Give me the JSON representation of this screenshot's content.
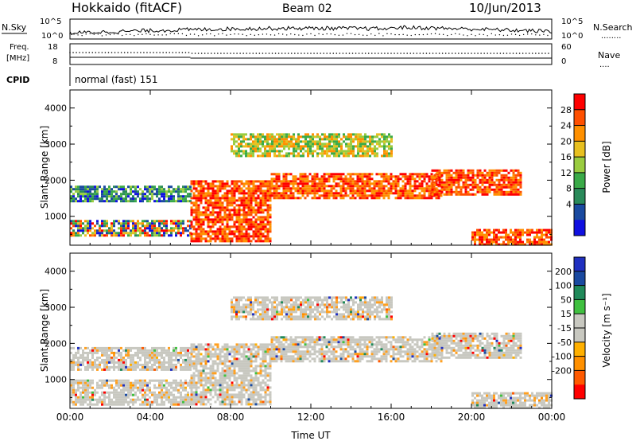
{
  "header": {
    "station": "Hokkaido (fitACF)",
    "beam": "Beam 02",
    "date": "10/Jun/2013"
  },
  "noise_panel": {
    "left_label": "N.Sky",
    "right_label": "N.Search",
    "right_label_line": "........",
    "ticks": [
      "10^5",
      "10^0"
    ]
  },
  "freq_panel": {
    "left_label_1": "Freq.",
    "left_label_2": "[MHz]",
    "left_ticks": [
      "18",
      "8"
    ],
    "right_label": "Nave",
    "right_label_line": "....",
    "right_ticks": [
      "60",
      "0"
    ]
  },
  "cpid": {
    "label": "CPID",
    "text": "normal (fast) 151"
  },
  "colors": {
    "power": [
      "#1010e0",
      "#1a4aa0",
      "#2a8a5a",
      "#3aaa48",
      "#9acc40",
      "#e8c020",
      "#ff9000",
      "#ff5000",
      "#ff0000"
    ],
    "velocity": [
      "#ff0000",
      "#ff5a00",
      "#ff9000",
      "#ffb000",
      "#c8c8c0",
      "#c8c8c0",
      "#40c040",
      "#208a5a",
      "#1a4aa0",
      "#2030c0"
    ]
  },
  "chart_data": [
    {
      "type": "heatmap",
      "panel": "power",
      "xlabel": "",
      "ylabel": "Slant Range [km]",
      "x_ticks": [
        "00:00",
        "04:00",
        "08:00",
        "12:00",
        "16:00",
        "20:00",
        "00:00"
      ],
      "y_ticks": [
        1000,
        2000,
        3000,
        4000
      ],
      "ylim": [
        200,
        4500
      ],
      "colorbar_label": "Power [dB]",
      "colorbar_ticks": [
        4,
        8,
        12,
        16,
        20,
        24,
        28
      ],
      "regions": [
        {
          "t0": 0.0,
          "t1": 6.0,
          "r0": 1400,
          "r1": 1850,
          "level": "low"
        },
        {
          "t0": 0.0,
          "t1": 6.0,
          "r0": 500,
          "r1": 900,
          "level": "mixed"
        },
        {
          "t0": 6.0,
          "t1": 10.0,
          "r0": 300,
          "r1": 2000,
          "level": "high"
        },
        {
          "t0": 10.0,
          "t1": 18.5,
          "r0": 1500,
          "r1": 2200,
          "level": "high"
        },
        {
          "t0": 18.0,
          "t1": 22.5,
          "r0": 1600,
          "r1": 2300,
          "level": "high"
        },
        {
          "t0": 20.0,
          "t1": 24.0,
          "r0": 250,
          "r1": 650,
          "level": "high"
        },
        {
          "t0": 8.0,
          "t1": 16.0,
          "r0": 2700,
          "r1": 3300,
          "level": "mid"
        }
      ]
    },
    {
      "type": "heatmap",
      "panel": "velocity",
      "xlabel": "Time UT",
      "ylabel": "Slant Range [km]",
      "x_ticks": [
        "00:00",
        "04:00",
        "08:00",
        "12:00",
        "16:00",
        "20:00",
        "00:00"
      ],
      "y_ticks": [
        1000,
        2000,
        3000,
        4000
      ],
      "ylim": [
        200,
        4500
      ],
      "colorbar_label": "Velocity [m s⁻¹]",
      "colorbar_ticks": [
        "200",
        "100",
        "50",
        "15",
        "-15",
        "-50",
        "-100",
        "-200"
      ],
      "regions": [
        {
          "t0": 0.0,
          "t1": 6.0,
          "r0": 1300,
          "r1": 1900,
          "level": "near-zero"
        },
        {
          "t0": 0.0,
          "t1": 6.0,
          "r0": 300,
          "r1": 1000,
          "level": "near-zero"
        },
        {
          "t0": 6.0,
          "t1": 10.0,
          "r0": 300,
          "r1": 2000,
          "level": "near-zero"
        },
        {
          "t0": 10.0,
          "t1": 18.5,
          "r0": 1500,
          "r1": 2200,
          "level": "near-zero"
        },
        {
          "t0": 18.0,
          "t1": 22.5,
          "r0": 1600,
          "r1": 2300,
          "level": "near-zero"
        },
        {
          "t0": 20.0,
          "t1": 24.0,
          "r0": 250,
          "r1": 650,
          "level": "near-zero"
        },
        {
          "t0": 8.0,
          "t1": 16.0,
          "r0": 2700,
          "r1": 3300,
          "level": "near-zero"
        }
      ]
    }
  ]
}
